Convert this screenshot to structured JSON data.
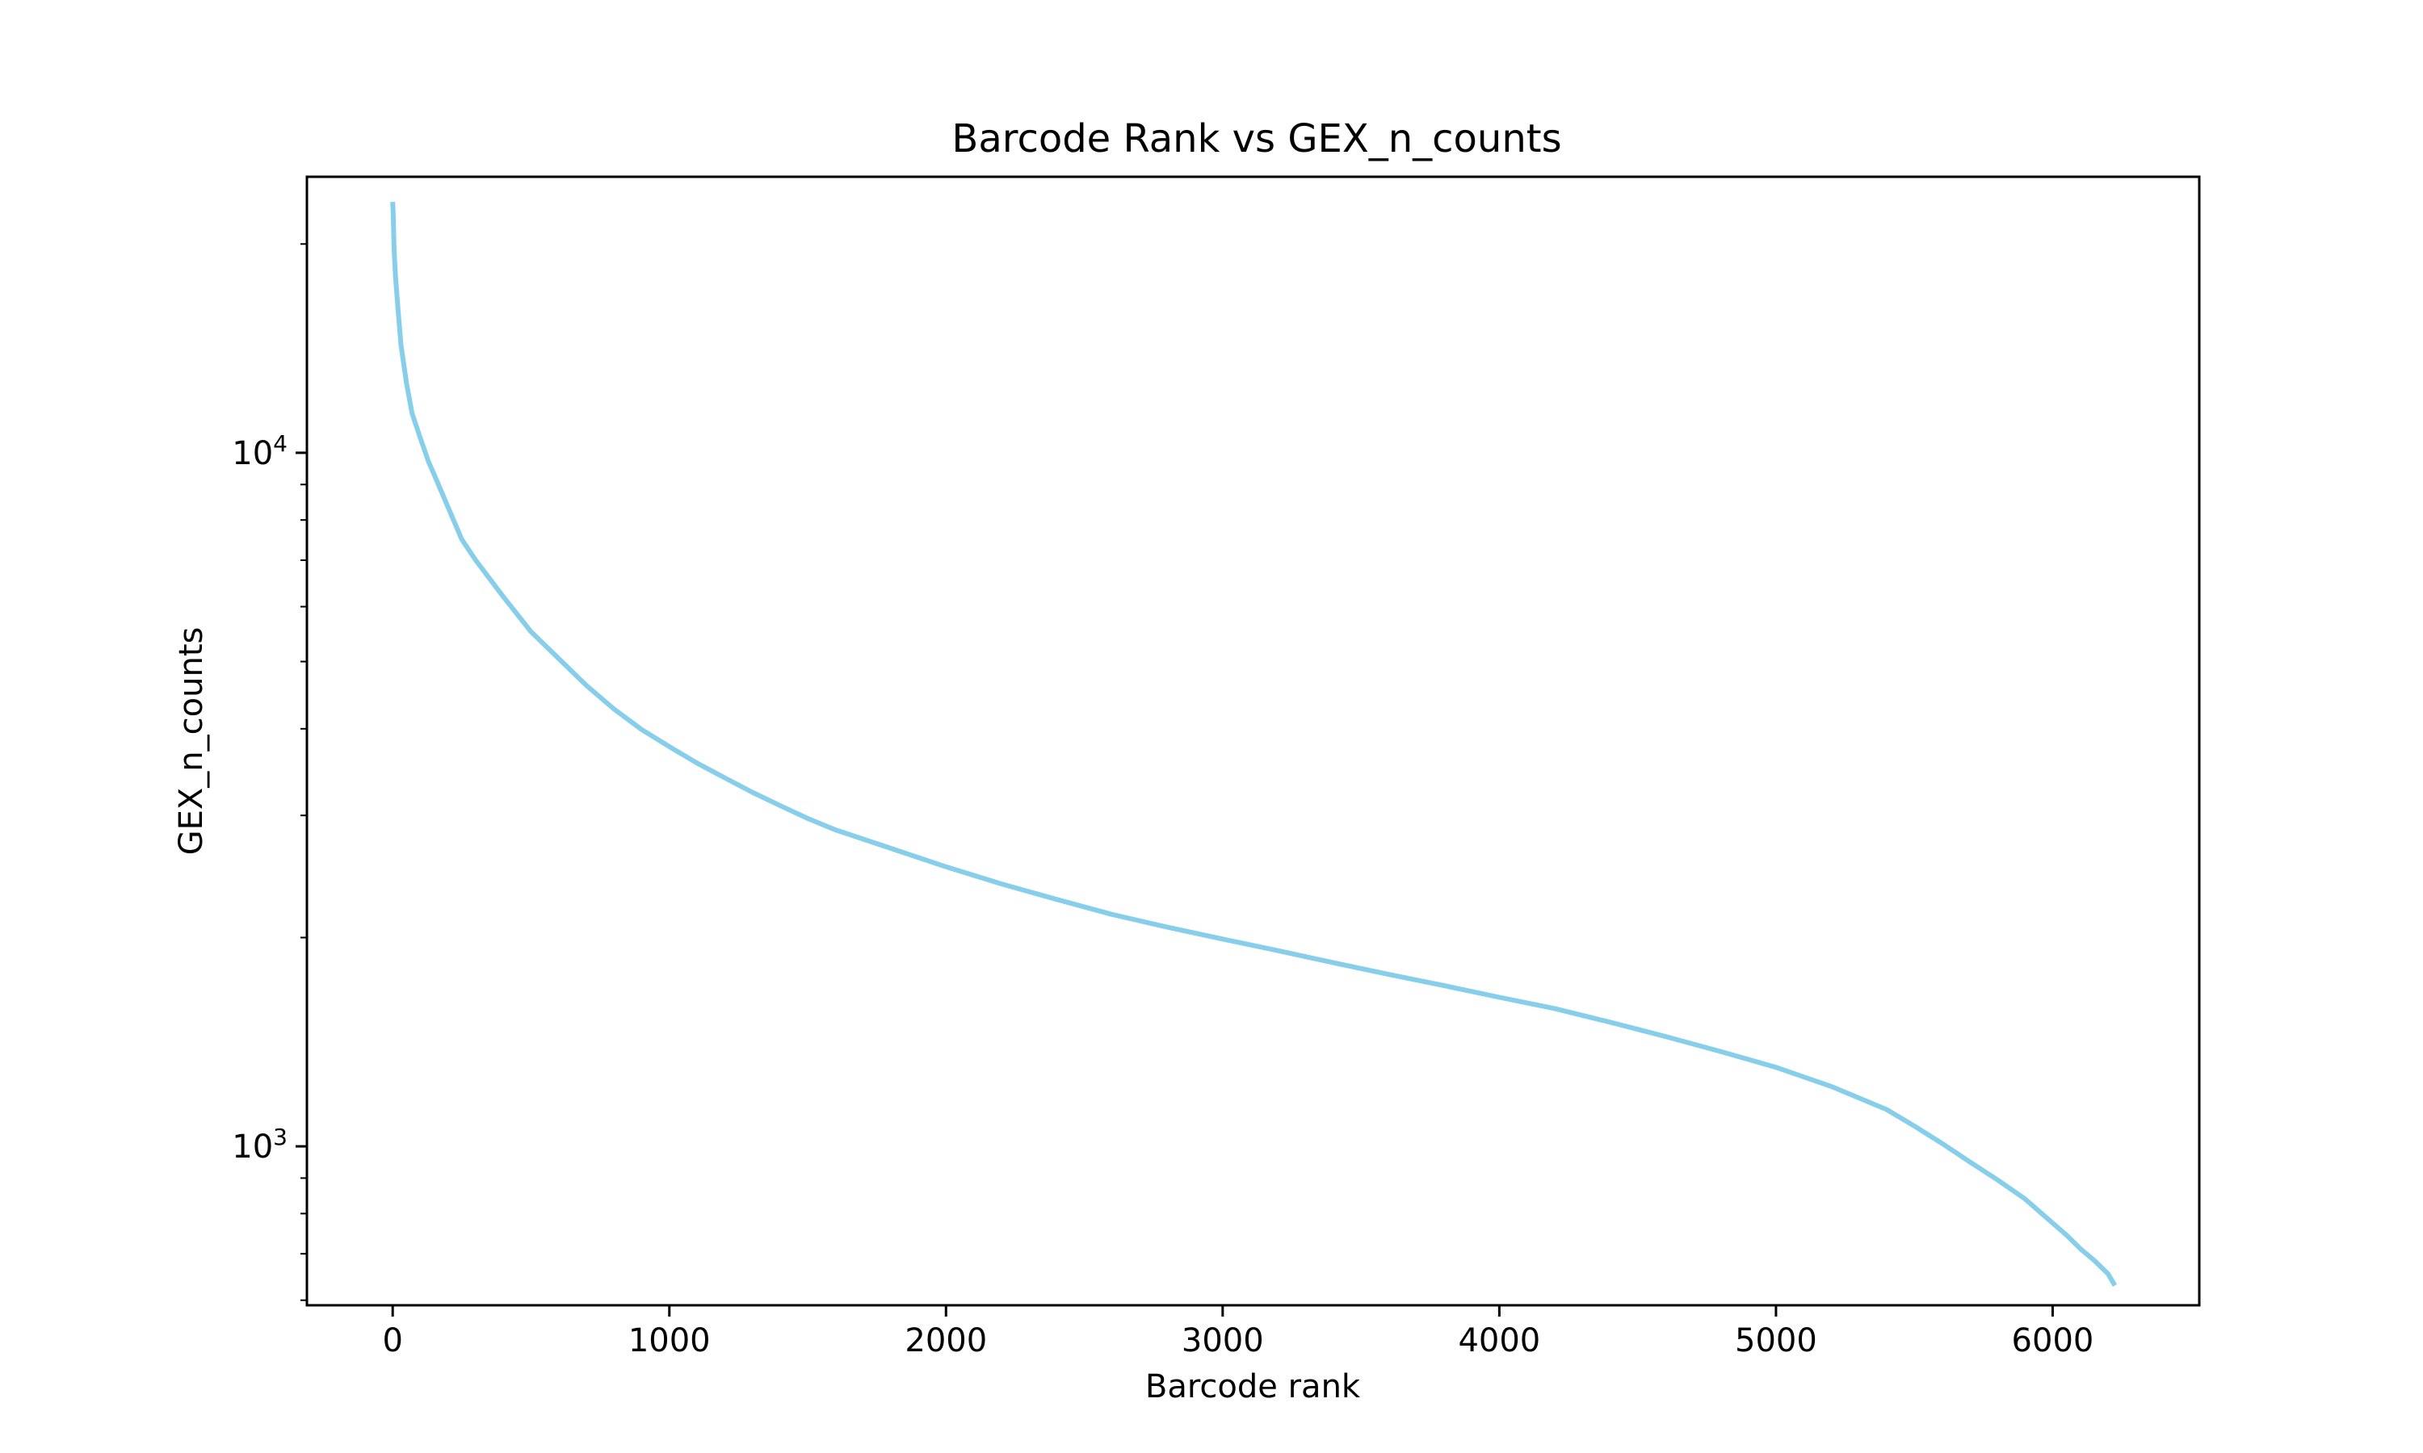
{
  "chart_data": {
    "type": "line",
    "title": "Barcode Rank vs GEX_n_counts",
    "xlabel": "Barcode rank",
    "ylabel": "GEX_n_counts",
    "xlim": [
      -310,
      6530
    ],
    "ylim": [
      590,
      25000
    ],
    "yscale": "log",
    "grid": false,
    "line_color": "#87ceeb",
    "x_ticks": [
      {
        "value": 0,
        "label": "0"
      },
      {
        "value": 1000,
        "label": "1000"
      },
      {
        "value": 2000,
        "label": "2000"
      },
      {
        "value": 3000,
        "label": "3000"
      },
      {
        "value": 4000,
        "label": "4000"
      },
      {
        "value": 5000,
        "label": "5000"
      },
      {
        "value": 6000,
        "label": "6000"
      }
    ],
    "y_ticks": [
      {
        "value": 1000,
        "base": "10",
        "exp": "3"
      },
      {
        "value": 10000,
        "base": "10",
        "exp": "4"
      }
    ],
    "y_minor_ticks": [
      600,
      700,
      800,
      900,
      2000,
      3000,
      4000,
      5000,
      6000,
      7000,
      8000,
      9000,
      20000
    ],
    "series": [
      {
        "x": [
          0,
          2,
          5,
          10,
          20,
          30,
          50,
          70,
          100,
          130,
          150,
          200,
          250,
          300,
          400,
          500,
          600,
          700,
          800,
          900,
          1000,
          1100,
          1200,
          1300,
          1400,
          1500,
          1600,
          1800,
          2000,
          2200,
          2400,
          2600,
          2800,
          3000,
          3200,
          3400,
          3600,
          3800,
          4000,
          4200,
          4400,
          4600,
          4800,
          5000,
          5200,
          5400,
          5500,
          5600,
          5700,
          5800,
          5900,
          6000,
          6050,
          6100,
          6150,
          6200,
          6225
        ],
        "y": [
          23000,
          22000,
          19700,
          18000,
          16000,
          14300,
          12600,
          11400,
          10500,
          9700,
          9300,
          8350,
          7500,
          7000,
          6200,
          5520,
          5050,
          4620,
          4270,
          3990,
          3770,
          3570,
          3400,
          3240,
          3100,
          2970,
          2860,
          2690,
          2530,
          2390,
          2270,
          2160,
          2070,
          1990,
          1915,
          1840,
          1770,
          1705,
          1640,
          1580,
          1510,
          1440,
          1370,
          1300,
          1220,
          1130,
          1070,
          1010,
          950,
          895,
          840,
          775,
          745,
          712,
          685,
          655,
          630
        ]
      }
    ]
  }
}
